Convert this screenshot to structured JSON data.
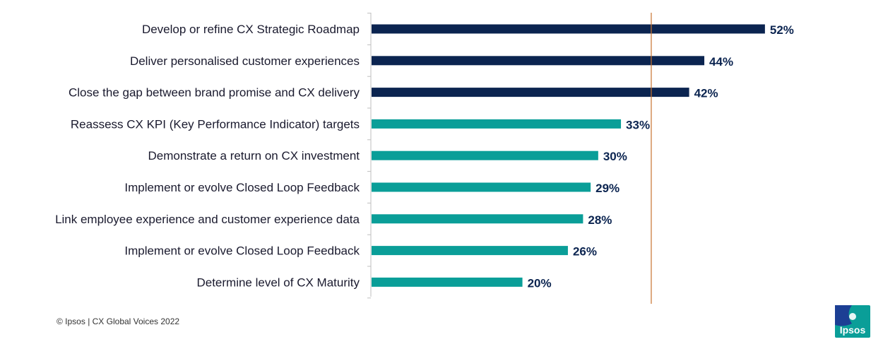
{
  "chart_data": {
    "type": "bar",
    "orientation": "horizontal",
    "categories": [
      "Develop or refine CX Strategic Roadmap",
      "Deliver personalised customer experiences",
      "Close the gap between brand promise and CX delivery",
      "Reassess CX KPI (Key Performance Indicator) targets",
      "Demonstrate a return on CX investment",
      "Implement or evolve Closed Loop Feedback",
      "Link employee experience and customer experience data",
      "Implement or evolve Closed Loop Feedback",
      "Determine level of CX Maturity"
    ],
    "values": [
      52,
      44,
      42,
      33,
      30,
      29,
      28,
      26,
      20
    ],
    "value_labels": [
      "52%",
      "44%",
      "42%",
      "33%",
      "30%",
      "29%",
      "28%",
      "26%",
      "20%"
    ],
    "xlim": [
      0,
      70
    ],
    "reference_line_value": 37,
    "highlight_top_n": 3,
    "colors": {
      "highlight": "#0b2450",
      "default": "#0a9e98",
      "reference_line": "#c8722e",
      "axis": "#bfbfbf"
    },
    "grid": false,
    "legend": "none"
  },
  "footer": {
    "copyright": "© Ipsos | CX Global Voices 2022"
  },
  "logo": {
    "text": "Ipsos",
    "color": "#0a9e98",
    "accent": "#1c3f94"
  }
}
